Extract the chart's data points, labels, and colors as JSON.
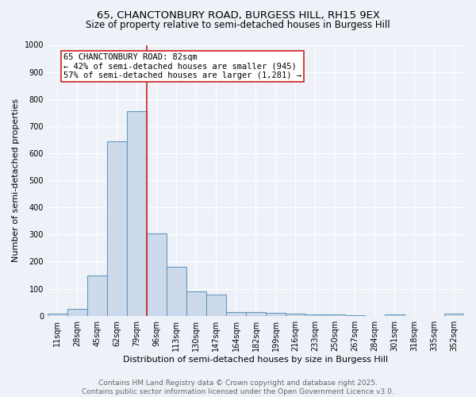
{
  "title1": "65, CHANCTONBURY ROAD, BURGESS HILL, RH15 9EX",
  "title2": "Size of property relative to semi-detached houses in Burgess Hill",
  "xlabel": "Distribution of semi-detached houses by size in Burgess Hill",
  "ylabel": "Number of semi-detached properties",
  "categories": [
    "11sqm",
    "28sqm",
    "45sqm",
    "62sqm",
    "79sqm",
    "96sqm",
    "113sqm",
    "130sqm",
    "147sqm",
    "164sqm",
    "182sqm",
    "199sqm",
    "216sqm",
    "233sqm",
    "250sqm",
    "267sqm",
    "284sqm",
    "301sqm",
    "318sqm",
    "335sqm",
    "352sqm"
  ],
  "values": [
    8,
    25,
    150,
    645,
    755,
    305,
    182,
    90,
    78,
    15,
    15,
    12,
    8,
    4,
    5,
    1,
    0,
    5,
    0,
    0,
    8
  ],
  "bar_color": "#cddaeb",
  "bar_edge_color": "#6699bb",
  "vline_x": 4.5,
  "vline_color": "#cc2222",
  "annotation_text": "65 CHANCTONBURY ROAD: 82sqm\n← 42% of semi-detached houses are smaller (945)\n57% of semi-detached houses are larger (1,281) →",
  "annotation_box_color": "#ffffff",
  "annotation_box_edge_color": "#cc2222",
  "ylim": [
    0,
    1000
  ],
  "yticks": [
    0,
    100,
    200,
    300,
    400,
    500,
    600,
    700,
    800,
    900,
    1000
  ],
  "footer_text": "Contains HM Land Registry data © Crown copyright and database right 2025.\nContains public sector information licensed under the Open Government Licence v3.0.",
  "bg_color": "#eef2f8",
  "grid_color": "#ffffff",
  "title_fontsize": 9.5,
  "subtitle_fontsize": 8.5,
  "axis_label_fontsize": 8,
  "tick_fontsize": 7,
  "annotation_fontsize": 7.5,
  "footer_fontsize": 6.5
}
